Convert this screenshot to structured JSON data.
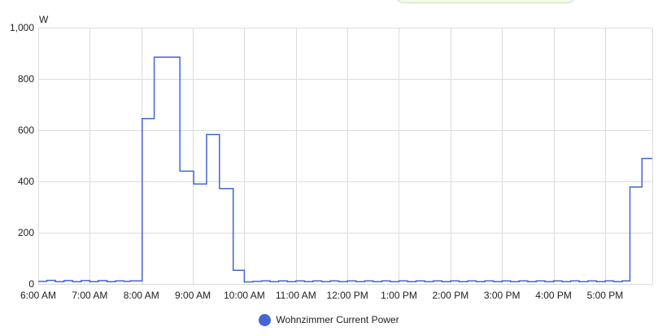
{
  "chart_data": {
    "type": "line",
    "step": true,
    "unit": "W",
    "ylim": [
      0,
      1000
    ],
    "xlim": [
      "6:00 AM",
      "5:55 PM"
    ],
    "yticks": [
      "0",
      "200",
      "400",
      "600",
      "800",
      "1,000"
    ],
    "xticks": [
      "6:00 AM",
      "7:00 AM",
      "8:00 AM",
      "9:00 AM",
      "10:00 AM",
      "11:00 AM",
      "12:00 PM",
      "1:00 PM",
      "2:00 PM",
      "3:00 PM",
      "4:00 PM",
      "5:00 PM"
    ],
    "grid": true,
    "legend_position": "bottom",
    "series": [
      {
        "name": "Wohnzimmer Current Power",
        "color": "#4465d4",
        "x": [
          "6:00 AM",
          "6:10 AM",
          "6:20 AM",
          "6:30 AM",
          "6:40 AM",
          "6:50 AM",
          "7:00 AM",
          "7:10 AM",
          "7:20 AM",
          "7:30 AM",
          "7:40 AM",
          "7:47 AM",
          "8:01 AM",
          "8:15 AM",
          "8:45 AM",
          "9:01 AM",
          "9:16 AM",
          "9:31 AM",
          "9:47 AM",
          "10:00 AM",
          "10:10 AM",
          "10:20 AM",
          "10:30 AM",
          "10:40 AM",
          "10:50 AM",
          "11:00 AM",
          "11:10 AM",
          "11:20 AM",
          "11:30 AM",
          "11:40 AM",
          "11:50 AM",
          "12:00 PM",
          "12:10 PM",
          "12:20 PM",
          "12:30 PM",
          "12:40 PM",
          "12:50 PM",
          "1:00 PM",
          "1:10 PM",
          "1:20 PM",
          "1:30 PM",
          "1:40 PM",
          "1:50 PM",
          "2:00 PM",
          "2:10 PM",
          "2:20 PM",
          "2:30 PM",
          "2:40 PM",
          "2:50 PM",
          "3:00 PM",
          "3:10 PM",
          "3:20 PM",
          "3:30 PM",
          "3:40 PM",
          "3:50 PM",
          "4:00 PM",
          "4:10 PM",
          "4:20 PM",
          "4:30 PM",
          "4:40 PM",
          "4:50 PM",
          "5:00 PM",
          "5:10 PM",
          "5:20 PM",
          "5:29 PM",
          "5:43 PM"
        ],
        "values": [
          10,
          14,
          9,
          13,
          9,
          13,
          9,
          13,
          9,
          12,
          10,
          12,
          645,
          885,
          440,
          390,
          583,
          372,
          53,
          8,
          10,
          12,
          9,
          12,
          9,
          12,
          9,
          12,
          9,
          12,
          9,
          12,
          9,
          12,
          9,
          12,
          9,
          12,
          9,
          12,
          9,
          12,
          9,
          12,
          9,
          12,
          9,
          12,
          9,
          12,
          9,
          12,
          9,
          12,
          9,
          12,
          9,
          12,
          9,
          12,
          9,
          12,
          9,
          12,
          378,
          490
        ]
      }
    ]
  }
}
